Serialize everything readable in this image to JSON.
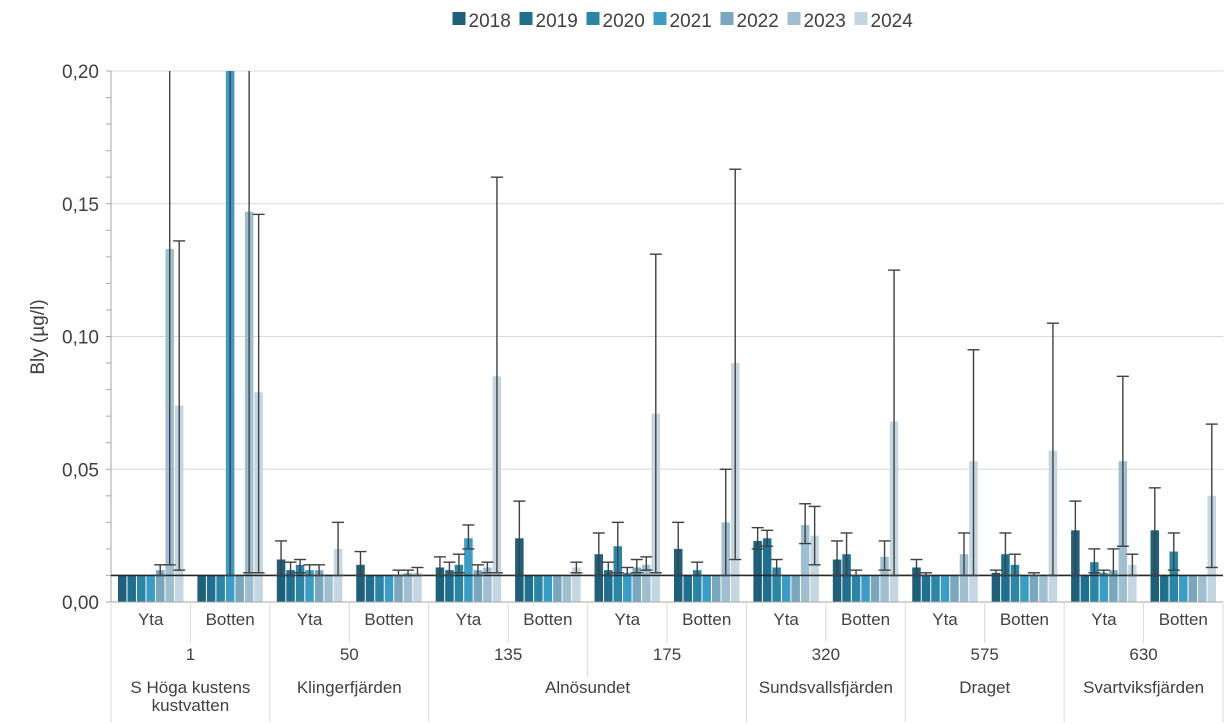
{
  "chart_data": {
    "type": "bar",
    "title": "",
    "ylabel": "Bly (µg/l)",
    "xlabel": "",
    "ylim": [
      0,
      0.2
    ],
    "yticks": [
      "0,00",
      "0,05",
      "0,10",
      "0,15",
      "0,20"
    ],
    "ytick_values": [
      0,
      0.05,
      0.1,
      0.15,
      0.2
    ],
    "grid": true,
    "legend_position": "top",
    "reference_line": 0.01,
    "colors": [
      "#1f5f7a",
      "#216f8e",
      "#2b86a6",
      "#3b9dc6",
      "#7aa7bd",
      "#9fbfd1",
      "#c3d6e2"
    ],
    "series": [
      {
        "name": "2018",
        "values": [
          0.01,
          0.01,
          0.016,
          0.014,
          0.013,
          0.024,
          0.018,
          0.02,
          0.023,
          0.016,
          0.013,
          0.011,
          0.027,
          0.027
        ]
      },
      {
        "name": "2019",
        "values": [
          0.01,
          0.01,
          0.012,
          0.01,
          0.012,
          0.01,
          0.012,
          0.01,
          0.024,
          0.018,
          0.01,
          0.018,
          0.01,
          0.01
        ]
      },
      {
        "name": "2020",
        "values": [
          0.01,
          0.01,
          0.014,
          0.01,
          0.014,
          0.01,
          0.021,
          0.012,
          0.013,
          0.01,
          0.01,
          0.014,
          0.015,
          0.019
        ]
      },
      {
        "name": "2021",
        "values": [
          0.01,
          0.2,
          0.012,
          0.01,
          0.024,
          0.01,
          0.011,
          0.01,
          0.01,
          0.01,
          0.01,
          0.01,
          0.011,
          0.01
        ]
      },
      {
        "name": "2022",
        "values": [
          0.012,
          0.01,
          0.012,
          0.01,
          0.012,
          0.01,
          0.013,
          0.01,
          0.01,
          0.01,
          0.01,
          0.01,
          0.012,
          0.01
        ]
      },
      {
        "name": "2023",
        "values": [
          0.133,
          0.147,
          0.01,
          0.011,
          0.013,
          0.01,
          0.014,
          0.03,
          0.029,
          0.017,
          0.018,
          0.01,
          0.053,
          0.01
        ]
      },
      {
        "name": "2024",
        "values": [
          0.074,
          0.079,
          0.02,
          0.011,
          0.085,
          0.013,
          0.071,
          0.09,
          0.025,
          0.068,
          0.053,
          0.057,
          0.014,
          0.04
        ]
      }
    ],
    "error_top": [
      [
        0.01,
        0.01,
        0.023,
        0.019,
        0.017,
        0.038,
        0.026,
        0.03,
        0.028,
        0.023,
        0.016,
        0.012,
        0.038,
        0.043
      ],
      [
        0.01,
        0.01,
        0.015,
        0.01,
        0.015,
        0.01,
        0.015,
        0.01,
        0.027,
        0.026,
        0.011,
        0.026,
        0.01,
        0.01
      ],
      [
        0.01,
        0.01,
        0.016,
        0.01,
        0.018,
        0.01,
        0.03,
        0.015,
        0.016,
        0.012,
        0.01,
        0.018,
        0.02,
        0.026
      ],
      [
        0.01,
        0.2,
        0.014,
        0.01,
        0.029,
        0.01,
        0.013,
        0.01,
        0.01,
        0.01,
        0.01,
        0.01,
        0.012,
        0.01
      ],
      [
        0.014,
        0.01,
        0.014,
        0.012,
        0.014,
        0.01,
        0.016,
        0.01,
        0.01,
        0.01,
        0.01,
        0.011,
        0.02,
        0.01
      ],
      [
        0.2,
        0.2,
        0.01,
        0.012,
        0.015,
        0.01,
        0.017,
        0.05,
        0.037,
        0.023,
        0.026,
        0.01,
        0.085,
        0.01
      ],
      [
        0.136,
        0.146,
        0.03,
        0.013,
        0.16,
        0.015,
        0.131,
        0.163,
        0.036,
        0.125,
        0.095,
        0.105,
        0.018,
        0.067
      ]
    ],
    "error_bottom": [
      [
        0.01,
        0.01,
        0.01,
        0.01,
        0.01,
        0.01,
        0.01,
        0.01,
        0.02,
        0.01,
        0.01,
        0.01,
        0.01,
        0.01
      ],
      [
        0.01,
        0.01,
        0.01,
        0.01,
        0.01,
        0.01,
        0.01,
        0.01,
        0.021,
        0.01,
        0.01,
        0.01,
        0.01,
        0.01
      ],
      [
        0.01,
        0.01,
        0.011,
        0.01,
        0.011,
        0.01,
        0.011,
        0.01,
        0.01,
        0.01,
        0.01,
        0.01,
        0.011,
        0.012
      ],
      [
        0.01,
        0.01,
        0.01,
        0.01,
        0.02,
        0.01,
        0.01,
        0.01,
        0.01,
        0.01,
        0.01,
        0.01,
        0.01,
        0.01
      ],
      [
        0.01,
        0.01,
        0.01,
        0.01,
        0.01,
        0.01,
        0.011,
        0.01,
        0.01,
        0.01,
        0.01,
        0.01,
        0.01,
        0.01
      ],
      [
        0.014,
        0.011,
        0.01,
        0.01,
        0.011,
        0.01,
        0.012,
        0.01,
        0.022,
        0.012,
        0.01,
        0.01,
        0.021,
        0.01
      ],
      [
        0.012,
        0.011,
        0.01,
        0.01,
        0.011,
        0.011,
        0.011,
        0.016,
        0.014,
        0.01,
        0.01,
        0.01,
        0.01,
        0.013
      ]
    ],
    "category_level1": [
      "Yta",
      "Botten",
      "Yta",
      "Botten",
      "Yta",
      "Botten",
      "Yta",
      "Botten",
      "Yta",
      "Botten",
      "Yta",
      "Botten",
      "Yta",
      "Botten"
    ],
    "category_level2": [
      "1",
      "50",
      "135",
      "175",
      "320",
      "575",
      "630"
    ],
    "category_level3": [
      {
        "label": "S Höga kustens kustvatten",
        "lines": [
          "S Höga kustens",
          "kustvatten"
        ],
        "span": 2
      },
      {
        "label": "Klingerfjärden",
        "lines": [
          "Klingerfjärden"
        ],
        "span": 2
      },
      {
        "label": "Alnösundet",
        "lines": [
          "Alnösundet"
        ],
        "span": 4
      },
      {
        "label": "Sundsvallsfjärden",
        "lines": [
          "Sundsvallsfjärden"
        ],
        "span": 2
      },
      {
        "label": "Draget",
        "lines": [
          "Draget"
        ],
        "span": 2
      },
      {
        "label": "Svartviksfjärden",
        "lines": [
          "Svartviksfjärden"
        ],
        "span": 2
      }
    ]
  }
}
